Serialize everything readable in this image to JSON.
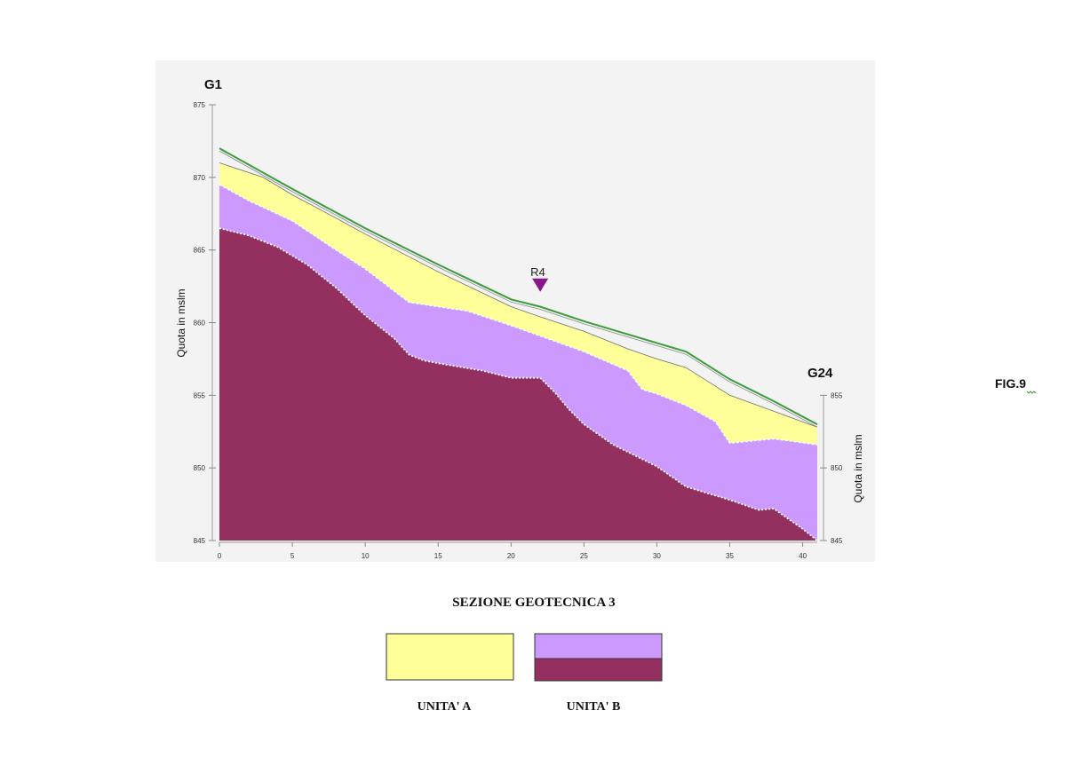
{
  "colors": {
    "unit_a": "#ffff99",
    "unit_b_upper": "#cc99ff",
    "unit_b_lower": "#943060",
    "ground_line": "#3b9c3b",
    "marker": "#8a178a",
    "panel_background": "#f3f3f3"
  },
  "chart_data": {
    "type": "area",
    "xlim": [
      0,
      41
    ],
    "ylim": [
      845,
      875
    ],
    "x_ticks": [
      0,
      5,
      10,
      15,
      20,
      25,
      30,
      35,
      40
    ],
    "y_ticks_left": [
      845,
      850,
      855,
      860,
      865,
      870,
      875
    ],
    "y_ticks_right": [
      845,
      850,
      855
    ],
    "ylabel": "Quota in mslm",
    "ylabel_right": "Quota in mslm",
    "boreholes": [
      {
        "label": "G1",
        "x": 0
      },
      {
        "label": "G24",
        "x": 41
      }
    ],
    "marker": {
      "label": "R4",
      "x": 22,
      "y": 862
    },
    "ground_surface": {
      "x": [
        0,
        5,
        10,
        15,
        20,
        22,
        25,
        30,
        32,
        35,
        38,
        41
      ],
      "y": [
        872,
        869.2,
        866.5,
        864.0,
        861.6,
        861.1,
        860.1,
        858.6,
        858.0,
        856.1,
        854.6,
        853.0
      ]
    },
    "top_unit_a": {
      "x": [
        0,
        3,
        5,
        8,
        10,
        15,
        20,
        22,
        25,
        28,
        30,
        32,
        35,
        38,
        41
      ],
      "y": [
        871,
        870,
        868.8,
        867.2,
        866.1,
        863.5,
        861.1,
        860.4,
        859.4,
        858.2,
        857.5,
        856.9,
        855.0,
        853.9,
        852.8
      ]
    },
    "top_unit_b_upper": {
      "x": [
        0,
        2,
        5,
        8,
        10,
        13,
        17,
        20,
        25,
        28,
        29,
        30,
        32,
        34,
        35,
        38,
        41
      ],
      "y": [
        869.5,
        868.4,
        867.0,
        865.0,
        863.7,
        861.4,
        860.8,
        859.8,
        858.0,
        856.7,
        855.4,
        855.1,
        854.3,
        853.2,
        851.7,
        852.0,
        851.6
      ]
    },
    "top_unit_b_lower": {
      "x": [
        0,
        2,
        4,
        6,
        8,
        10,
        12,
        13,
        14,
        15,
        18,
        20,
        22,
        23,
        24,
        25,
        27,
        30,
        32,
        35,
        37,
        38,
        40,
        41
      ],
      "y": [
        866.5,
        866.0,
        865.2,
        864.0,
        862.4,
        860.5,
        858.9,
        857.8,
        857.4,
        857.2,
        856.7,
        856.2,
        856.2,
        855.2,
        854.0,
        853.0,
        851.6,
        850.1,
        848.7,
        847.8,
        847.1,
        847.2,
        845.8,
        845.0
      ]
    }
  },
  "labels": {
    "bore_left": "G1",
    "bore_right": "G24",
    "marker": "R4",
    "fig": "FIG.9",
    "section_title": "SEZIONE GEOTECNICA  3"
  },
  "legend": {
    "unit_a": "UNITA' A",
    "unit_b": "UNITA' B"
  }
}
